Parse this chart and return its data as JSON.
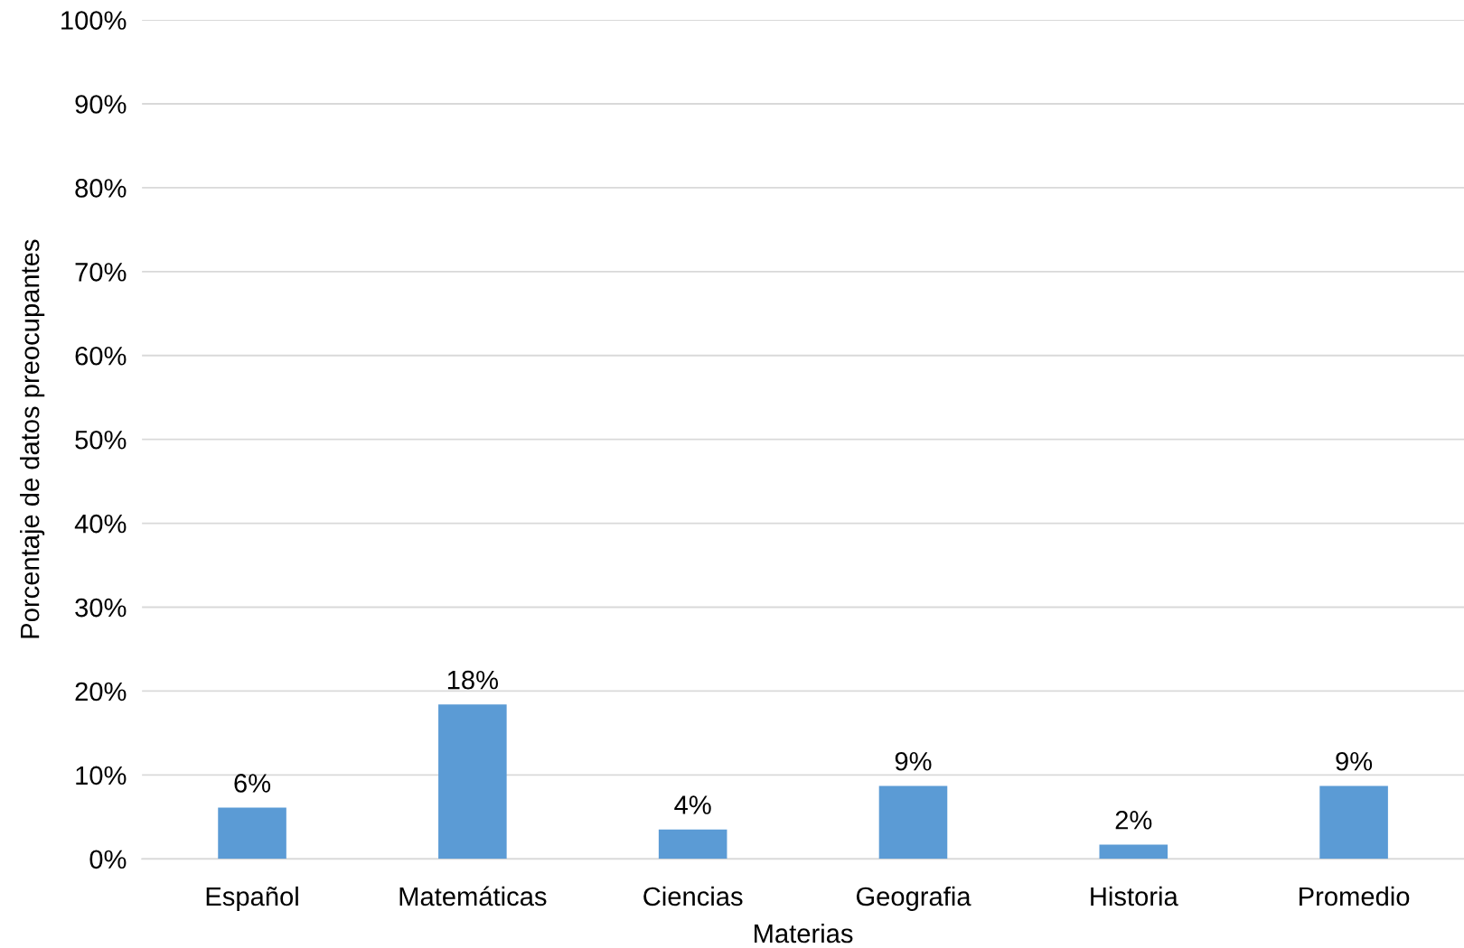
{
  "chart_data": {
    "type": "bar",
    "xlabel": "Materias",
    "ylabel": "Porcentaje de datos preocupantes",
    "categories": [
      "Español",
      "Matemáticas",
      "Ciencias",
      "Geografia",
      "Historia",
      "Promedio"
    ],
    "values": [
      6.1,
      18.4,
      3.5,
      8.7,
      1.7,
      8.7
    ],
    "value_labels": [
      "6%",
      "18%",
      "4%",
      "9%",
      "2%",
      "9%"
    ],
    "color": "#5b9bd5",
    "ylim": [
      0,
      100
    ],
    "yticks": [
      {
        "value": 0,
        "label": "0%"
      },
      {
        "value": 10,
        "label": "10%"
      },
      {
        "value": 20,
        "label": "20%"
      },
      {
        "value": 30,
        "label": "30%"
      },
      {
        "value": 40,
        "label": "40%"
      },
      {
        "value": 50,
        "label": "50%"
      },
      {
        "value": 60,
        "label": "60%"
      },
      {
        "value": 70,
        "label": "70%"
      },
      {
        "value": 80,
        "label": "80%"
      },
      {
        "value": 90,
        "label": "90%"
      },
      {
        "value": 100,
        "label": "100%"
      }
    ],
    "grid": "y"
  }
}
